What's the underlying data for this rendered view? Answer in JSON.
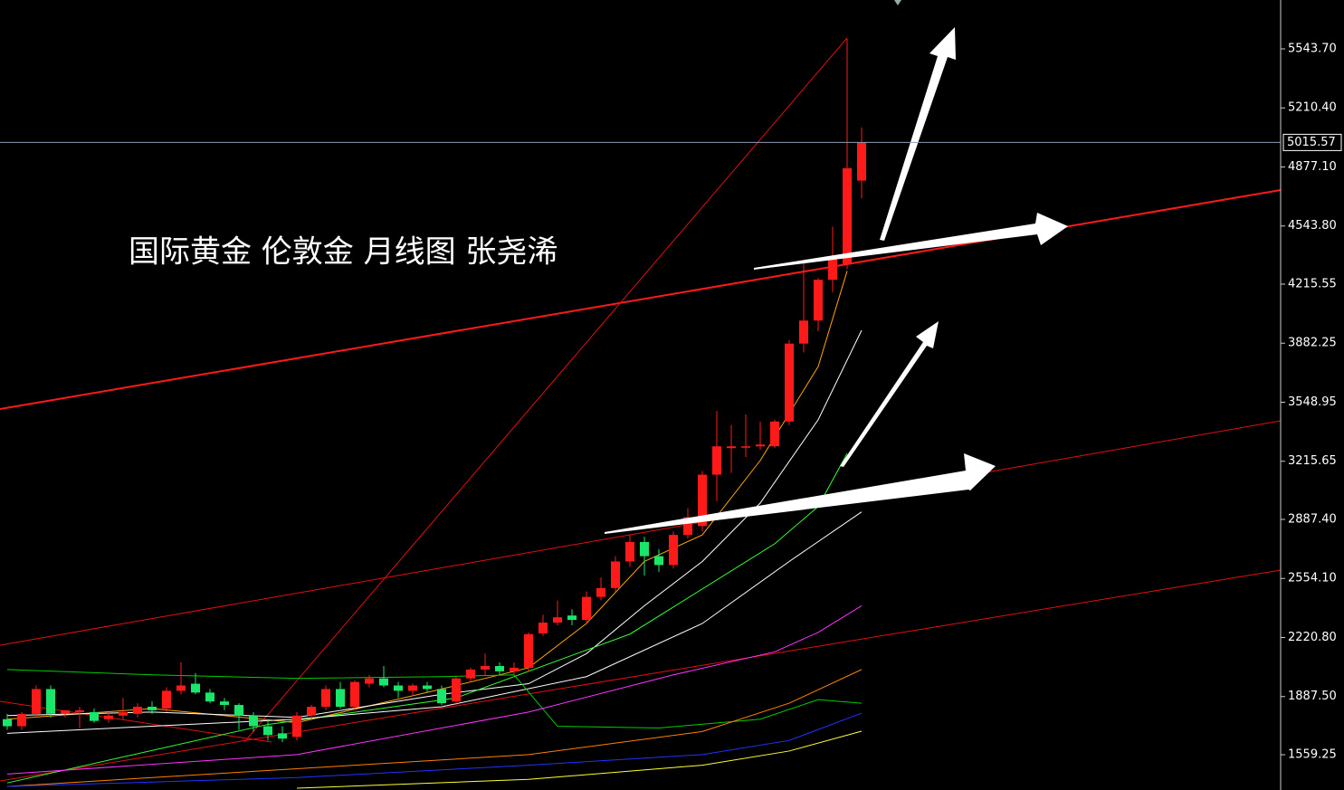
{
  "chart_data": {
    "type": "candlestick",
    "title": "国际黄金  伦敦金  月线图 张尧浠",
    "ylim": [
      1360.03,
      5819.55
    ],
    "yticks": [
      {
        "value": 5543.7,
        "label": "5543.70"
      },
      {
        "value": 5210.4,
        "label": "5210.40"
      },
      {
        "value": 4877.1,
        "label": "4877.10"
      },
      {
        "value": 4543.8,
        "label": "4543.80"
      },
      4215.55,
      3882.25,
      3548.95,
      3215.65,
      {
        "value": 2887.4,
        "label": "2887.40"
      },
      {
        "value": 2554.1,
        "label": "2554.10"
      },
      {
        "value": 2220.8,
        "label": "2220.80"
      },
      {
        "value": 1887.5,
        "label": "1887.50"
      },
      1559.25
    ],
    "last_price": 5015.57,
    "up_color": "#ff1a1a",
    "down_color": "#19e66b",
    "candles": {
      "open": [
        1760,
        1720,
        1790,
        1930,
        1790,
        1800,
        1800,
        1760,
        1780,
        1790,
        1830,
        1820,
        1920,
        1960,
        1910,
        1860,
        1840,
        1780,
        1720,
        1680,
        1660,
        1780,
        1830,
        1930,
        1830,
        1960,
        1990,
        1950,
        1920,
        1950,
        1930,
        1860,
        1990,
        2040,
        2060,
        2030,
        2050,
        2244,
        2305,
        2345,
        2320,
        2450,
        2500,
        2650,
        2760,
        2680,
        2630,
        2800,
        2850,
        3140,
        3290,
        3300,
        3300,
        3300,
        3440,
        3880,
        4010,
        4240,
        4330,
        4800
      ],
      "high": [
        1790,
        1800,
        1950,
        1950,
        1810,
        1830,
        1820,
        1800,
        1880,
        1850,
        1860,
        1940,
        2080,
        2020,
        1930,
        1880,
        1850,
        1800,
        1760,
        1720,
        1800,
        1840,
        1950,
        1970,
        1980,
        2010,
        2060,
        1970,
        1960,
        1970,
        1950,
        2000,
        2050,
        2130,
        2080,
        2080,
        2250,
        2350,
        2430,
        2380,
        2480,
        2560,
        2680,
        2800,
        2790,
        2720,
        2820,
        2950,
        3160,
        3500,
        3420,
        3480,
        3440,
        3450,
        3900,
        4340,
        4250,
        4540,
        5600,
        5100
      ],
      "low": [
        1700,
        1700,
        1770,
        1770,
        1770,
        1710,
        1740,
        1740,
        1760,
        1770,
        1790,
        1800,
        1900,
        1900,
        1850,
        1810,
        1700,
        1690,
        1640,
        1630,
        1640,
        1760,
        1810,
        1820,
        1810,
        1940,
        1940,
        1880,
        1890,
        1910,
        1840,
        1840,
        1970,
        2010,
        2010,
        2010,
        2030,
        2230,
        2290,
        2290,
        2300,
        2430,
        2480,
        2620,
        2570,
        2590,
        2610,
        2780,
        2820,
        2990,
        3150,
        3240,
        3280,
        3290,
        3420,
        3830,
        3950,
        4170,
        4300,
        4700
      ],
      "close": [
        1720,
        1790,
        1930,
        1790,
        1810,
        1810,
        1750,
        1780,
        1800,
        1830,
        1810,
        1920,
        1950,
        1910,
        1860,
        1840,
        1780,
        1720,
        1670,
        1650,
        1780,
        1830,
        1930,
        1830,
        1970,
        1990,
        1950,
        1920,
        1950,
        1930,
        1850,
        1990,
        2040,
        2060,
        2030,
        2050,
        2240,
        2305,
        2335,
        2320,
        2450,
        2500,
        2650,
        2760,
        2680,
        2630,
        2800,
        2900,
        3140,
        3300,
        3300,
        3300,
        3310,
        3440,
        3880,
        4010,
        4240,
        4360,
        4870,
        5015.57
      ]
    },
    "series": [
      {
        "color": "#ffa500",
        "x": [
          0,
          10,
          20,
          30,
          36,
          40,
          44,
          48,
          52,
          56,
          58
        ],
        "values": [
          1760,
          1820,
          1740,
          1930,
          2050,
          2300,
          2650,
          2800,
          3220,
          3750,
          4290
        ]
      },
      {
        "color": "#ffffff",
        "x": [
          0,
          10,
          20,
          30,
          36,
          40,
          44,
          48,
          52,
          56,
          59
        ],
        "values": [
          1780,
          1800,
          1770,
          1900,
          1960,
          2130,
          2400,
          2650,
          2980,
          3450,
          3955
        ]
      },
      {
        "color": "#33ff33",
        "x": [
          0,
          18,
          31,
          43,
          53,
          56,
          58
        ],
        "values": [
          1400,
          1730,
          1880,
          2240,
          2750,
          2960,
          3260
        ]
      },
      {
        "color": "#ffffff",
        "x": [
          0,
          10,
          20,
          30,
          40,
          48,
          54,
          59
        ],
        "values": [
          1680,
          1720,
          1760,
          1830,
          2000,
          2300,
          2650,
          2930
        ]
      },
      {
        "color": "#00cc00",
        "x": [
          0,
          10,
          20,
          30,
          35,
          38,
          45,
          52,
          56,
          59
        ],
        "values": [
          2040,
          2010,
          1990,
          2000,
          2010,
          1720,
          1710,
          1760,
          1870,
          1850
        ]
      },
      {
        "color": "#ff33ff",
        "x": [
          0,
          20,
          36,
          46,
          53,
          56,
          59
        ],
        "values": [
          1450,
          1560,
          1800,
          2010,
          2140,
          2250,
          2400
        ]
      },
      {
        "color": "#ff8000",
        "x": [
          0,
          20,
          36,
          48,
          54,
          59
        ],
        "values": [
          1380,
          1480,
          1560,
          1690,
          1850,
          2040
        ]
      },
      {
        "color": "#2233ff",
        "x": [
          0,
          20,
          36,
          48,
          54,
          59
        ],
        "values": [
          1380,
          1430,
          1500,
          1560,
          1640,
          1794
        ]
      },
      {
        "color": "#ffff33",
        "x": [
          20,
          36,
          48,
          54,
          59
        ],
        "values": [
          1370,
          1420,
          1500,
          1580,
          1692
        ]
      }
    ]
  }
}
